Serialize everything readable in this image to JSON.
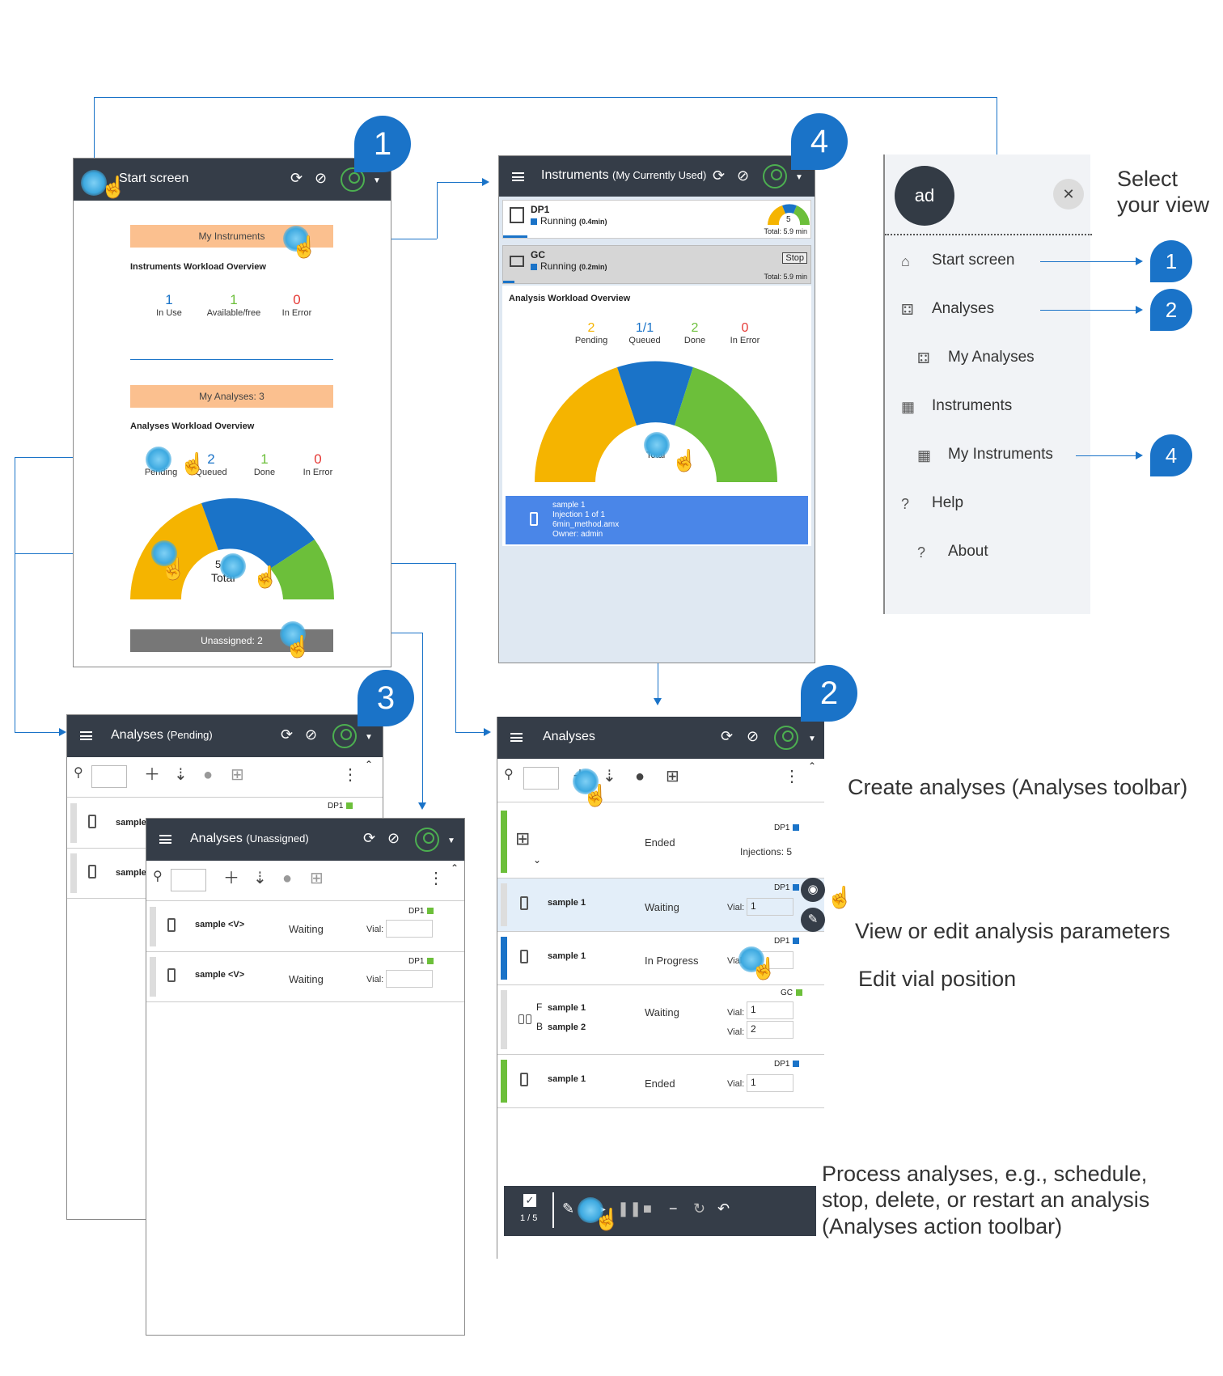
{
  "start": {
    "title": "Start screen",
    "my_instruments": "My Instruments",
    "inst_overview_title": "Instruments Workload Overview",
    "inst_stats": [
      {
        "value": "1",
        "label": "In Use",
        "color": "#1a73c8"
      },
      {
        "value": "1",
        "label": "Available/free",
        "color": "#6cbf3a"
      },
      {
        "value": "0",
        "label": "In Error",
        "color": "#e53935"
      }
    ],
    "my_analyses": "My Analyses: 3",
    "an_overview_title": "Analyses Workload Overview",
    "an_stats": [
      {
        "value": "2",
        "label": "Pending",
        "color": "#f5b400"
      },
      {
        "value": "2",
        "label": "Queued",
        "color": "#1a73c8"
      },
      {
        "value": "1",
        "label": "Done",
        "color": "#6cbf3a"
      },
      {
        "value": "0",
        "label": "In Error",
        "color": "#e53935"
      }
    ],
    "total_value": "5",
    "total_label": "Total",
    "unassigned": "Unassigned: 2"
  },
  "instruments": {
    "title": "Instruments",
    "subtitle": "(My Currently Used)",
    "items": [
      {
        "name": "DP1",
        "status": "Running",
        "time": "(0.4min)",
        "total": "Total: 5.9 min",
        "gauge_value": "5"
      },
      {
        "name": "GC",
        "status": "Running",
        "time": "(0.2min)",
        "total": "Total: 5.9 min",
        "stop": "Stop"
      }
    ],
    "overview_title": "Analysis Workload Overview",
    "stats": [
      {
        "value": "2",
        "label": "Pending",
        "color": "#f5b400"
      },
      {
        "value": "1/1",
        "label": "Queued",
        "color": "#1a73c8"
      },
      {
        "value": "2",
        "label": "Done",
        "color": "#6cbf3a"
      },
      {
        "value": "0",
        "label": "In Error",
        "color": "#e53935"
      }
    ],
    "total_value": "5",
    "total_label": "Total",
    "sample_card": {
      "line1": "sample 1",
      "line2": "Injection 1 of 1",
      "line3": "6min_method.amx",
      "line4": "Owner: admin"
    }
  },
  "menu": {
    "avatar": "ad",
    "close": "✕",
    "select_view": "Select your view",
    "items": [
      {
        "label": "Start screen",
        "callout": "1"
      },
      {
        "label": "Analyses",
        "callout": "2"
      },
      {
        "label": "My Analyses",
        "callout": ""
      },
      {
        "label": "Instruments",
        "callout": ""
      },
      {
        "label": "My Instruments",
        "callout": "4"
      },
      {
        "label": "Help",
        "callout": ""
      },
      {
        "label": "About",
        "callout": ""
      }
    ]
  },
  "callouts": {
    "c1": "1",
    "c2": "2",
    "c3": "3",
    "c4": "4"
  },
  "pending": {
    "title": "Analyses",
    "subtitle": "(Pending)",
    "rows": [
      {
        "sample": "sample"
      },
      {
        "sample": "sample"
      }
    ],
    "dp": "DP1"
  },
  "unassigned": {
    "title": "Analyses",
    "subtitle": "(Unassigned)",
    "rows": [
      {
        "sample": "sample <V>",
        "status": "Waiting",
        "vial_label": "Vial:",
        "dp": "DP1"
      },
      {
        "sample": "sample <V>",
        "status": "Waiting",
        "vial_label": "Vial:",
        "dp": "DP1"
      }
    ]
  },
  "analyses": {
    "title": "Analyses",
    "rows": [
      {
        "status": "Ended",
        "dp": "DP1",
        "injections": "Injections: 5"
      },
      {
        "sample": "sample 1",
        "status": "Waiting",
        "vial_label": "Vial:",
        "vial": "1",
        "dp": "DP1"
      },
      {
        "sample": "sample 1",
        "status": "In Progress",
        "vial_label": "Vial:",
        "vial": "1",
        "dp": "DP1"
      },
      {
        "sample_a_prefix": "F",
        "sample_a": "sample 1",
        "sample_b_prefix": "B",
        "sample_b": "sample 2",
        "status": "Waiting",
        "vial_label": "Vial:",
        "vial_a": "1",
        "vial_b": "2",
        "dp": "GC"
      },
      {
        "sample": "sample 1",
        "status": "Ended",
        "vial_label": "Vial:",
        "vial": "1",
        "dp": "DP1"
      }
    ],
    "action_counter": "1 / 5"
  },
  "notes": {
    "create": "Create analyses (Analyses toolbar)",
    "view_edit": "View or edit analysis parameters",
    "edit_vial": "Edit vial position",
    "process": "Process analyses, e.g., schedule, stop, delete, or restart an analysis (Analyses action toolbar)"
  },
  "colors": {
    "header": "#353d48",
    "pending": "#f5b400",
    "queued": "#1a73c8",
    "done": "#6cbf3a",
    "error": "#e53935",
    "banner": "#fbc08f",
    "callout": "#1a73c8"
  }
}
